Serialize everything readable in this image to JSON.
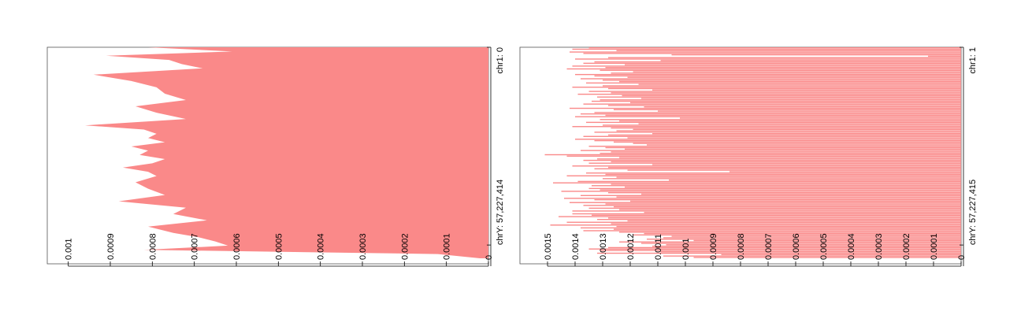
{
  "colors": {
    "fill": "#fa8989",
    "axis": "#000000",
    "frame": "#555555",
    "background": "#ffffff"
  },
  "chart_data": [
    {
      "type": "area",
      "orientation": "horizontal",
      "x_axis_position": "bottom, rotated labels",
      "xlim": [
        0,
        0.00105
      ],
      "x_ticks": [
        0.001,
        0.0009,
        0.0008,
        0.0007,
        0.0006,
        0.0005,
        0.0004,
        0.0003,
        0.0002,
        0.0001,
        0
      ],
      "x_tick_labels": [
        "0.001",
        "0.0009",
        "0.0008",
        "0.0007",
        "0.0006",
        "0.0005",
        "0.0004",
        "0.0003",
        "0.0002",
        "0.0001",
        "0"
      ],
      "y_tick_labels": [
        "chr1: 0",
        "chrY: 57,227,414"
      ],
      "y_tick_positions": [
        0,
        0.937
      ],
      "grid": false,
      "series": [
        {
          "y": [
            0,
            0.02,
            0.04,
            0.06,
            0.08,
            0.1,
            0.13,
            0.16,
            0.19,
            0.22,
            0.25,
            0.28,
            0.31,
            0.34,
            0.37,
            0.39,
            0.41,
            0.43,
            0.45,
            0.47,
            0.49,
            0.51,
            0.53,
            0.55,
            0.57,
            0.59,
            0.61,
            0.64,
            0.67,
            0.7,
            0.73,
            0.76,
            0.79,
            0.82,
            0.85,
            0.88,
            0.9,
            0.92,
            0.94,
            0.96,
            0.98,
            1.0
          ],
          "values": [
            0.00081,
            0.00061,
            0.00091,
            0.00076,
            0.00073,
            0.00068,
            0.00094,
            0.00085,
            0.00079,
            0.00077,
            0.00072,
            0.00084,
            0.00079,
            0.00072,
            0.00096,
            0.00082,
            0.00079,
            0.00081,
            0.00077,
            0.00085,
            0.00081,
            0.00083,
            0.00077,
            0.0008,
            0.00087,
            0.00081,
            0.00079,
            0.00084,
            0.00081,
            0.00077,
            0.00088,
            0.00072,
            0.00075,
            0.00067,
            0.00081,
            0.00075,
            0.00069,
            0.00065,
            0.00062,
            0.00082,
            0.00012,
            2e-05
          ]
        }
      ]
    },
    {
      "type": "bar",
      "orientation": "horizontal",
      "x_axis_position": "bottom, rotated labels",
      "xlim": [
        0,
        0.0016
      ],
      "x_ticks": [
        0.0015,
        0.0014,
        0.0013,
        0.0012,
        0.0011,
        0.001,
        0.0009,
        0.0008,
        0.0007,
        0.0006,
        0.0005,
        0.0004,
        0.0003,
        0.0002,
        0.0001,
        0
      ],
      "x_tick_labels": [
        "0.0015",
        "0.0014",
        "0.0013",
        "0.0012",
        "0.0011",
        "0.001",
        "0.0009",
        "0.0008",
        "0.0007",
        "0.0006",
        "0.0005",
        "0.0004",
        "0.0003",
        "0.0002",
        "0.0001",
        "0"
      ],
      "y_tick_labels": [
        "chr1: 1",
        "chrY: 57,227,415"
      ],
      "y_tick_positions": [
        0,
        0.937
      ],
      "grid": false,
      "series": [
        {
          "values": [
            0.00135,
            0.00141,
            0.00125,
            0.00142,
            0.00137,
            0.00105,
            0.00012,
            0.00128,
            0.0014,
            0.00109,
            0.00133,
            0.00137,
            0.00122,
            0.00141,
            0.00129,
            0.00143,
            0.00131,
            0.00119,
            0.00127,
            0.0014,
            0.00133,
            0.00121,
            0.00138,
            0.0013,
            0.00124,
            0.00136,
            0.00117,
            0.0013,
            0.00141,
            0.00128,
            0.00112,
            0.00135,
            0.00127,
            0.00139,
            0.00123,
            0.00132,
            0.00116,
            0.00131,
            0.00134,
            0.0012,
            0.00137,
            0.00128,
            0.00115,
            0.00142,
            0.00126,
            0.0011,
            0.00133,
            0.00138,
            0.00129,
            0.0014,
            0.00102,
            0.00131,
            0.00124,
            0.00136,
            0.00117,
            0.0013,
            0.00141,
            0.00127,
            0.00119,
            0.00125,
            0.00133,
            0.00112,
            0.00128,
            0.00137,
            0.00121,
            0.0014,
            0.00133,
            0.00126,
            0.00119,
            0.00114,
            0.00135,
            0.00129,
            0.00122,
            0.00138,
            0.00127,
            0.00131,
            0.00151,
            0.00143,
            0.00124,
            0.00132,
            0.00137,
            0.00127,
            0.00135,
            0.00112,
            0.00141,
            0.00128,
            0.00133,
            0.00121,
            0.00084,
            0.00136,
            0.00129,
            0.00143,
            0.00125,
            0.0013,
            0.00106,
            0.00139,
            0.00148,
            0.00127,
            0.00134,
            0.00122,
            0.00135,
            0.00131,
            0.00145,
            0.00128,
            0.00116,
            0.00138,
            0.00125,
            0.00144,
            0.00133,
            0.0012,
            0.00142,
            0.00129,
            0.00137,
            0.00126,
            0.00135,
            0.00124,
            0.00141,
            0.00115,
            0.00141,
            0.00134,
            0.00146,
            0.00128,
            0.00132,
            0.00121,
            0.00143,
            0.00127,
            0.00149,
            0.00125,
            0.00138,
            0.00126,
            0.00137,
            0.00124,
            0.00115,
            0.00119,
            0.00105,
            0.00108,
            0.00114,
            0.00097,
            0.00124,
            0.00116,
            0.00107,
            0.00112,
            0.00128,
            0.00135,
            0.00131,
            0.00109,
            0.00132,
            0.00087,
            0.00108,
            0.00097
          ]
        }
      ]
    }
  ]
}
